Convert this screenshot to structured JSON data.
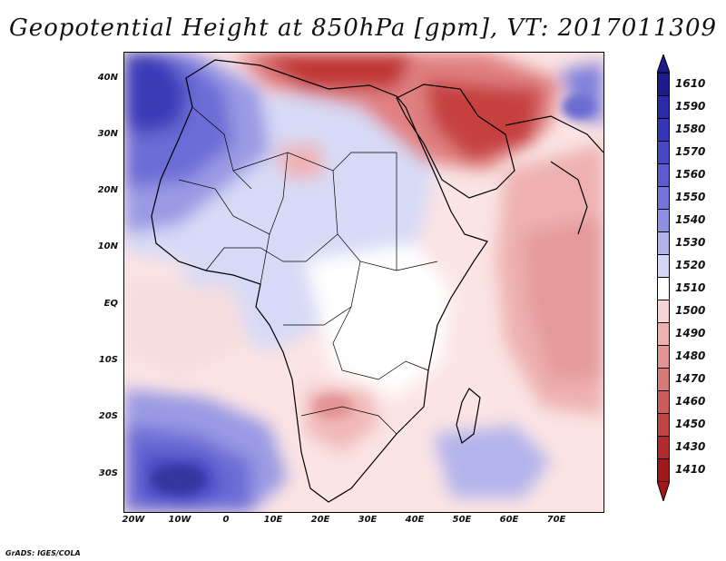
{
  "title": "Geopotential Height at 850hPa [gpm], VT: 2017011309",
  "credit": "GrADS: IGES/COLA",
  "lat_labels": [
    "40N",
    "30N",
    "20N",
    "10N",
    "EQ",
    "10S",
    "20S",
    "30S"
  ],
  "lon_labels": [
    "20W",
    "10W",
    "0",
    "10E",
    "20E",
    "30E",
    "40E",
    "50E",
    "60E",
    "70E"
  ],
  "colorbar": {
    "levels": [
      "1610",
      "1590",
      "1580",
      "1570",
      "1560",
      "1550",
      "1540",
      "1530",
      "1520",
      "1510",
      "1500",
      "1490",
      "1480",
      "1470",
      "1460",
      "1450",
      "1430",
      "1410"
    ],
    "colors": [
      "#1c1c8c",
      "#2a2aa8",
      "#3535b8",
      "#4848c4",
      "#5c5cd0",
      "#7474da",
      "#9090e2",
      "#b2b2ec",
      "#d4d6f6",
      "#ffffff",
      "#f8d4d4",
      "#f0b0b0",
      "#e49494",
      "#d87878",
      "#cc5c5c",
      "#c04444",
      "#b22a2a",
      "#a01818"
    ]
  },
  "regions": {
    "north_high": "high-north-atlantic",
    "south_high": "high-south-atlantic",
    "north_low": "low-north-africa-middle-east",
    "indian_low": "low-indian-ocean"
  }
}
